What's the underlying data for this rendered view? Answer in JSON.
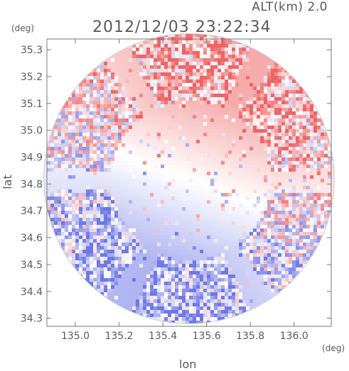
{
  "header": {
    "altitude_label": "ALT(km) 2.0",
    "timestamp": "2012/12/03 23:22:34"
  },
  "axes": {
    "y_unit": "(deg)",
    "x_unit": "(deg)",
    "xlabel": "lon",
    "ylabel": "lat"
  },
  "chart_data": {
    "type": "heatmap",
    "title": "",
    "xlabel": "lon",
    "ylabel": "lat",
    "xlim": [
      134.87,
      136.17
    ],
    "ylim": [
      34.27,
      35.34
    ],
    "x_ticks": [
      135.0,
      135.2,
      135.4,
      135.6,
      135.8,
      136.0
    ],
    "x_tick_labels": [
      "135.0",
      "135.2",
      "135.4",
      "135.6",
      "135.8",
      "136.0"
    ],
    "y_ticks": [
      34.3,
      34.4,
      34.5,
      34.6,
      34.7,
      34.8,
      34.9,
      35.0,
      35.1,
      35.2,
      35.3
    ],
    "y_tick_labels": [
      "34.3",
      "34.4",
      "34.5",
      "34.6",
      "34.7",
      "34.8",
      "34.9",
      "35.0",
      "35.1",
      "35.2",
      "35.3"
    ],
    "radar_center": [
      135.52,
      34.82
    ],
    "radar_range_lat_deg": 0.54,
    "colormap": {
      "negative": "#6f78e6",
      "zero": "#ffffff",
      "positive": "#ee6464"
    },
    "grid": false
  }
}
